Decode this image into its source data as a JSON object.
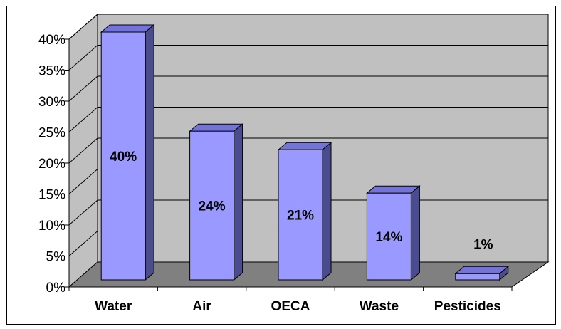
{
  "chart_data": {
    "type": "bar",
    "title": "",
    "xlabel": "",
    "ylabel": "",
    "categories": [
      "Water",
      "Air",
      "OECA",
      "Waste",
      "Pesticides"
    ],
    "values": [
      40,
      24,
      21,
      14,
      1
    ],
    "data_labels": [
      "40%",
      "24%",
      "21%",
      "14%",
      "1%"
    ],
    "ylim": [
      0,
      40
    ],
    "y_ticks": [
      0,
      5,
      10,
      15,
      20,
      25,
      30,
      35,
      40
    ],
    "y_tick_labels": [
      "0%",
      "5%",
      "10%",
      "15%",
      "20%",
      "25%",
      "30%",
      "35%",
      "40%"
    ],
    "grid": true,
    "three_d": true,
    "colors": {
      "bar_front": "#9999ff",
      "bar_side": "#4b4b8f",
      "bar_top": "#7474d6",
      "back_wall": "#c0c0c0",
      "side_wall": "#c0c0c0",
      "floor": "#808080",
      "gridline": "#000000"
    }
  }
}
